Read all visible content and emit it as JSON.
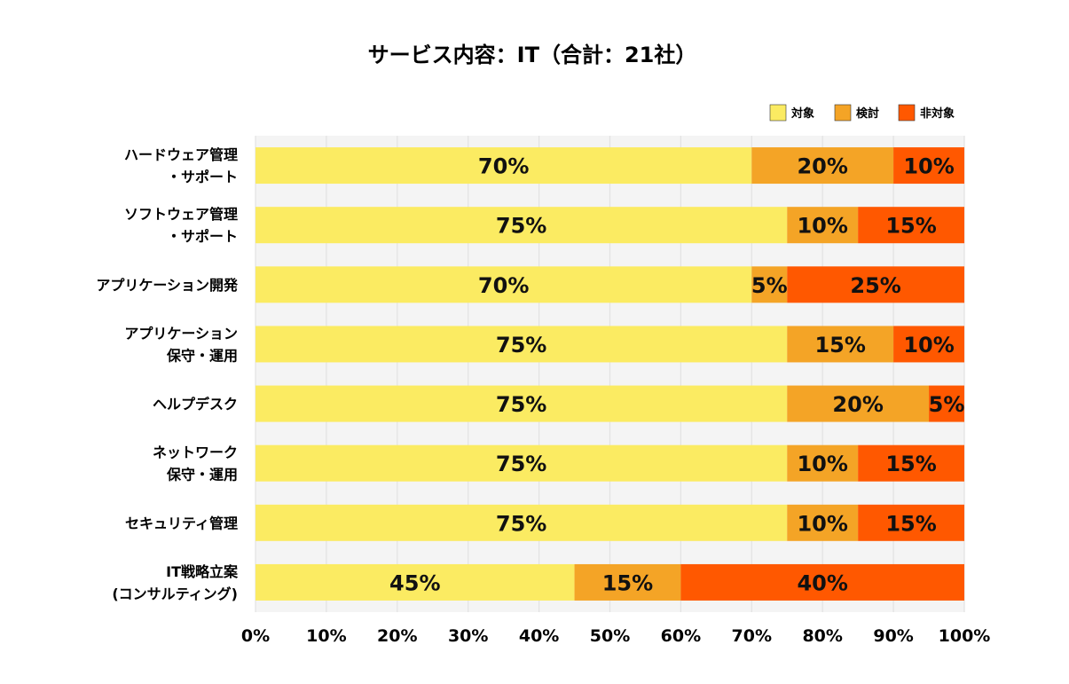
{
  "chart_data": {
    "type": "bar",
    "orientation": "horizontal",
    "stacked": true,
    "title": "サービス内容：IT（合計：21社）",
    "xlabel": "",
    "ylabel": "",
    "xlim": [
      0,
      100
    ],
    "x_ticks": [
      "0%",
      "10%",
      "20%",
      "30%",
      "40%",
      "50%",
      "60%",
      "70%",
      "80%",
      "90%",
      "100%"
    ],
    "grid": true,
    "legend_position": "top-right",
    "categories": [
      [
        "ハードウェア管理",
        "・サポート"
      ],
      [
        "ソフトウェア管理",
        "・サポート"
      ],
      [
        "アプリケーション開発"
      ],
      [
        "アプリケーション",
        "保守・運用"
      ],
      [
        "ヘルプデスク"
      ],
      [
        "ネットワーク",
        "保守・運用"
      ],
      [
        "セキュリティ管理"
      ],
      [
        "IT戦略立案",
        "(コンサルティング)"
      ]
    ],
    "series": [
      {
        "name": "対象",
        "color": "#FBEB62",
        "values": [
          70,
          75,
          70,
          75,
          75,
          75,
          75,
          45
        ],
        "labels": [
          "70%",
          "75%",
          "70%",
          "75%",
          "75%",
          "75%",
          "75%",
          "45%"
        ]
      },
      {
        "name": "検討",
        "color": "#F4A426",
        "values": [
          20,
          10,
          5,
          15,
          20,
          10,
          10,
          15
        ],
        "labels": [
          "20%",
          "10%",
          "5%",
          "15%",
          "20%",
          "10%",
          "10%",
          "15%"
        ]
      },
      {
        "name": "非対象",
        "color": "#FF5800",
        "values": [
          10,
          15,
          25,
          10,
          5,
          15,
          15,
          40
        ],
        "labels": [
          "10%",
          "15%",
          "25%",
          "10%",
          "5%",
          "15%",
          "15%",
          "40%"
        ]
      }
    ]
  }
}
